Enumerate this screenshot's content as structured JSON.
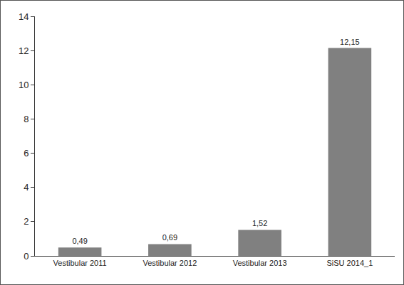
{
  "chart_data": {
    "type": "bar",
    "categories": [
      "Vestibular 2011",
      "Vestibular 2012",
      "Vestibular 2013",
      "SiSU 2014_1"
    ],
    "values": [
      0.49,
      0.69,
      1.52,
      12.15
    ],
    "value_labels": [
      "0,49",
      "0,69",
      "1,52",
      "12,15"
    ],
    "data_labels": true,
    "color": "#808080",
    "ylim": [
      0,
      14
    ],
    "yticks": [
      0,
      2,
      4,
      6,
      8,
      10,
      12,
      14
    ],
    "grid": false
  }
}
